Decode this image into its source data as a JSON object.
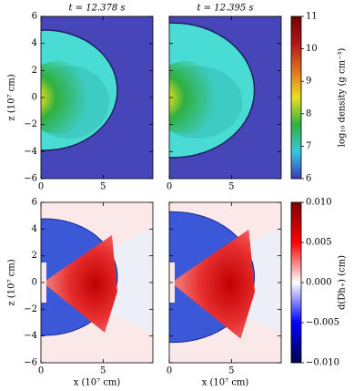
{
  "chart_data": [
    {
      "type": "image",
      "title": "t = 12.378 s",
      "ylabel": "z (10⁷ cm)",
      "xlim": [
        0,
        9
      ],
      "ylim": [
        -6,
        6
      ],
      "xticks": [
        0,
        5
      ],
      "yticks": [
        {
          "value": -6,
          "label": "−6"
        },
        {
          "value": -4,
          "label": "−4"
        },
        {
          "value": -2,
          "label": "−2"
        },
        0,
        2,
        4,
        6
      ]
    },
    {
      "type": "image",
      "title": "t = 12.395 s",
      "xlim": [
        0,
        9
      ],
      "ylim": [
        -6,
        6
      ],
      "xticks": [
        0,
        5
      ],
      "yticks": [
        -6,
        -4,
        -2,
        0,
        2,
        4,
        6
      ],
      "colorbar": {
        "label": "log₁₀ density (g cm⁻³)",
        "lim": [
          6,
          11
        ],
        "ticks": [
          6,
          7,
          8,
          9,
          10,
          11
        ],
        "colors": [
          "#3a3ab8",
          "#38c8e0",
          "#30b040",
          "#e8e020",
          "#e07020",
          "#b01818",
          "#700000"
        ]
      }
    },
    {
      "type": "image",
      "ylabel": "z (10⁷ cm)",
      "xlabel": "x (10⁷ cm)",
      "xlim": [
        0,
        9
      ],
      "ylim": [
        -6,
        6
      ],
      "xticks": [
        0,
        5
      ],
      "yticks": [
        {
          "value": -6,
          "label": "−6"
        },
        {
          "value": -4,
          "label": "−4"
        },
        {
          "value": -2,
          "label": "−2"
        },
        0,
        2,
        4,
        6
      ]
    },
    {
      "type": "image",
      "xlabel": "x (10⁷ cm)",
      "xlim": [
        0,
        9
      ],
      "ylim": [
        -6,
        6
      ],
      "xticks": [
        0,
        5
      ],
      "yticks": [
        -6,
        -4,
        -2,
        0,
        2,
        4,
        6
      ],
      "colorbar": {
        "label": "d(Dh₊) (cm)",
        "lim": [
          -0.01,
          0.01
        ],
        "ticks": [
          {
            "value": -0.01,
            "label": "−0.010"
          },
          {
            "value": -0.005,
            "label": "−0.005"
          },
          {
            "value": 0,
            "label": "0.000"
          },
          {
            "value": 0.005,
            "label": "0.005"
          },
          {
            "value": 0.01,
            "label": "0.010"
          }
        ],
        "colors": [
          "#00004c",
          "#0000ff",
          "#ffffff",
          "#ff0000",
          "#800000"
        ]
      }
    }
  ]
}
